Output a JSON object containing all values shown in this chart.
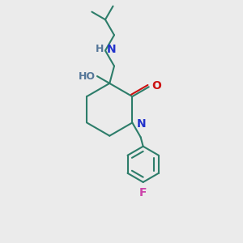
{
  "bg_color": "#ebebeb",
  "bond_color": "#2d7d6a",
  "N_color": "#2233cc",
  "O_color": "#cc1111",
  "F_color": "#cc44aa",
  "HO_color": "#557799",
  "line_width": 1.5,
  "figsize": [
    3.0,
    3.0
  ],
  "dpi": 100,
  "xlim": [
    0,
    10
  ],
  "ylim": [
    0,
    10
  ]
}
